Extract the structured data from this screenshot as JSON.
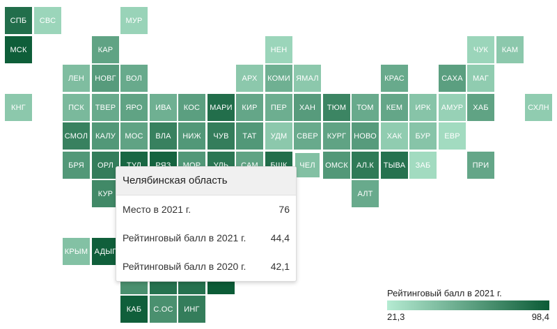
{
  "map": {
    "colors": {
      "low": "#b5ebd2",
      "high": "#0b5b36"
    },
    "regions": [
      {
        "label": "СПБ",
        "score": 88
      },
      {
        "label": "СВС",
        "score": 33
      },
      {
        "label": "МУР",
        "score": 34
      },
      {
        "label": "МСК",
        "score": 97
      },
      {
        "label": "КАР",
        "score": 60
      },
      {
        "label": "НЕН",
        "score": 33
      },
      {
        "label": "ЧУК",
        "score": 33
      },
      {
        "label": "КАМ",
        "score": 40
      },
      {
        "label": "ЛЕН",
        "score": 46
      },
      {
        "label": "НОВГ",
        "score": 64
      },
      {
        "label": "ВОЛ",
        "score": 56
      },
      {
        "label": "АРХ",
        "score": 40
      },
      {
        "label": "КОМИ",
        "score": 53
      },
      {
        "label": "ЯМАЛ",
        "score": 40
      },
      {
        "label": "КРАС",
        "score": 56
      },
      {
        "label": "САХА",
        "score": 62
      },
      {
        "label": "МАГ",
        "score": 38
      },
      {
        "label": "КНГ",
        "score": 40
      },
      {
        "label": "ПСК",
        "score": 48
      },
      {
        "label": "ТВЕР",
        "score": 56
      },
      {
        "label": "ЯРО",
        "score": 60
      },
      {
        "label": "ИВА",
        "score": 53
      },
      {
        "label": "КОС",
        "score": 62
      },
      {
        "label": "МАРИ",
        "score": 88
      },
      {
        "label": "КИР",
        "score": 58
      },
      {
        "label": "ПЕР",
        "score": 54
      },
      {
        "label": "ХАН",
        "score": 64
      },
      {
        "label": "ТЮМ",
        "score": 76
      },
      {
        "label": "ТОМ",
        "score": 56
      },
      {
        "label": "КЕМ",
        "score": 58
      },
      {
        "label": "ИРК",
        "score": 42
      },
      {
        "label": "АМУР",
        "score": 35
      },
      {
        "label": "ХАБ",
        "score": 60
      },
      {
        "label": "СХЛН",
        "score": 38
      },
      {
        "label": "СМОЛ",
        "score": 78
      },
      {
        "label": "КАЛУ",
        "score": 66
      },
      {
        "label": "МОС",
        "score": 60
      },
      {
        "label": "ВЛА",
        "score": 78
      },
      {
        "label": "НИЖ",
        "score": 66
      },
      {
        "label": "ЧУВ",
        "score": 80
      },
      {
        "label": "ТАТ",
        "score": 66
      },
      {
        "label": "УДМ",
        "score": 40
      },
      {
        "label": "СВЕР",
        "score": 56
      },
      {
        "label": "КУРГ",
        "score": 60
      },
      {
        "label": "НОВО",
        "score": 64
      },
      {
        "label": "ХАК",
        "score": 38
      },
      {
        "label": "БУР",
        "score": 42
      },
      {
        "label": "ЕВР",
        "score": 30
      },
      {
        "label": "БРЯ",
        "score": 66
      },
      {
        "label": "ОРЛ",
        "score": 80
      },
      {
        "label": "ТУЛ",
        "score": 92
      },
      {
        "label": "РЯЗ",
        "score": 94
      },
      {
        "label": "МОР",
        "score": 66
      },
      {
        "label": "УЛЬ",
        "score": 84
      },
      {
        "label": "САМ",
        "score": 60
      },
      {
        "label": "БШК",
        "score": 88
      },
      {
        "label": "ЧЕЛ",
        "score": 44.4
      },
      {
        "label": "ОМСК",
        "score": 66
      },
      {
        "label": "АЛ.К",
        "score": 82
      },
      {
        "label": "ТЫВА",
        "score": 86
      },
      {
        "label": "ЗАБ",
        "score": 30
      },
      {
        "label": "ПРИ",
        "score": 58
      },
      {
        "label": "КУР",
        "score": 74
      },
      {
        "label": "АЛТ",
        "score": 56
      },
      {
        "label": "КРЫМ",
        "score": 44
      },
      {
        "label": "АДЫГ",
        "score": 96
      },
      {
        "label": "",
        "score": 70
      },
      {
        "label": "",
        "score": 86
      },
      {
        "label": "",
        "score": 86
      },
      {
        "label": "",
        "score": 98
      },
      {
        "label": "КАБ",
        "score": 96
      },
      {
        "label": "С.ОС",
        "score": 70
      },
      {
        "label": "ИНГ",
        "score": 80
      }
    ]
  },
  "tooltip": {
    "title": "Челябинская область",
    "rows": [
      {
        "label": "Место в 2021 г.",
        "value": "76"
      },
      {
        "label": "Рейтинговый балл в 2021 г.",
        "value": "44,4"
      },
      {
        "label": "Рейтинговый балл в 2020 г.",
        "value": "42,1"
      }
    ]
  },
  "legend": {
    "title": "Рейтинговый балл в 2021 г.",
    "min_label": "21,3",
    "max_label": "98,4",
    "min": 21.3,
    "max": 98.4
  }
}
